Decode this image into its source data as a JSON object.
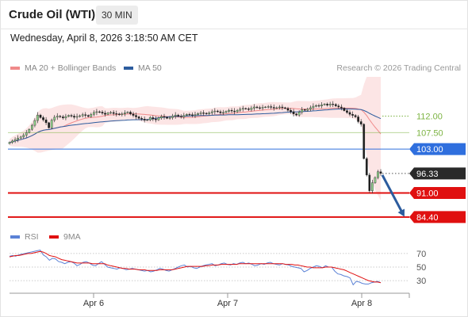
{
  "header": {
    "instrument": "Crude Oil (WTI)",
    "timeframe": "30 MIN",
    "datetime": "Wednesday, April 8, 2026 3:18:50 AM CET"
  },
  "legend": {
    "ma20_label": "MA 20 + Bollinger Bands",
    "ma20_color": "#f08a8a",
    "ma50_label": "MA 50",
    "ma50_color": "#2c5c9e",
    "credit": "Research © 2026 Trading Central"
  },
  "rsi_legend": {
    "rsi_label": "RSI",
    "rsi_color": "#5b82d6",
    "ma9_label": "9MA",
    "ma9_color": "#e01010"
  },
  "chart_data": [
    {
      "type": "candlestick",
      "title": "Crude Oil (WTI)",
      "x_ticks": [
        "Apr 6",
        "Apr 7",
        "Apr 8"
      ],
      "ylim": [
        82,
        121
      ],
      "price_close": [
        104.8,
        105.2,
        105.6,
        106.0,
        106.3,
        106.8,
        107.5,
        108.4,
        109.5,
        110.8,
        112.3,
        111.6,
        111.0,
        110.2,
        108.8,
        110.9,
        111.7,
        112.0,
        111.8,
        111.5,
        111.9,
        112.2,
        112.0,
        111.7,
        111.9,
        112.1,
        112.4,
        112.2,
        111.9,
        112.5,
        113.0,
        113.2,
        113.1,
        112.8,
        112.5,
        112.9,
        113.0,
        112.7,
        112.6,
        112.4,
        112.6,
        112.9,
        113.1,
        112.6,
        112.2,
        111.8,
        111.4,
        111.2,
        110.9,
        111.0,
        111.6,
        111.2,
        111.0,
        111.5,
        111.9,
        111.7,
        111.4,
        111.6,
        112.0,
        112.3,
        112.0,
        111.8,
        112.2,
        112.5,
        112.4,
        112.2,
        112.4,
        112.7,
        112.9,
        112.8,
        112.6,
        112.9,
        113.2,
        113.4,
        113.2,
        112.9,
        113.0,
        113.3,
        113.6,
        113.4,
        113.2,
        113.6,
        113.9,
        114.1,
        114.0,
        113.8,
        114.2,
        114.5,
        114.3,
        114.2,
        114.4,
        114.5,
        114.6,
        114.4,
        114.2,
        114.3,
        114.5,
        114.3,
        114.1,
        113.6,
        113.2,
        112.6,
        112.3,
        113.1,
        113.8,
        113.6,
        113.9,
        114.3,
        114.7,
        114.9,
        114.8,
        115.1,
        115.3,
        115.0,
        115.3,
        115.2,
        114.8,
        114.5,
        114.2,
        113.5,
        113.0,
        112.5,
        112.2,
        111.8,
        110.5,
        109.8,
        100.4,
        95.9,
        91.6,
        93.8,
        95.2,
        96.8,
        96.33
      ],
      "bollinger_upper_range": [
        105,
        126
      ],
      "ma20_range": [
        96,
        115
      ],
      "ma50_range": [
        104,
        114
      ],
      "levels": [
        {
          "value": 112.0,
          "label": "112.00",
          "style": "dotted-green",
          "color": "#7cb342"
        },
        {
          "value": 107.5,
          "label": "107.50",
          "style": "solid-green",
          "color": "#7cb342"
        },
        {
          "value": 103.0,
          "label": "103.00",
          "style": "blue",
          "color": "#2f6fde"
        },
        {
          "value": 96.33,
          "label": "96.33",
          "style": "last-price",
          "color": "#2a2a2a"
        },
        {
          "value": 91.0,
          "label": "91.00",
          "style": "red",
          "color": "#e01010"
        },
        {
          "value": 84.4,
          "label": "84.40",
          "style": "red",
          "color": "#e01010"
        }
      ],
      "forecast_arrow": {
        "from": 96.33,
        "to": 84.4,
        "color": "#2c5c9e"
      }
    },
    {
      "type": "line",
      "title": "RSI",
      "ylim": [
        15,
        78
      ],
      "ticks": [
        70,
        50,
        30
      ],
      "series": [
        {
          "name": "RSI",
          "color": "#5b82d6",
          "values": [
            66,
            67,
            66,
            68,
            69,
            70,
            71,
            72,
            73,
            74,
            75,
            68,
            65,
            60,
            63,
            62,
            58,
            57,
            55,
            57,
            58,
            56,
            52,
            54,
            57,
            58,
            56,
            53,
            52,
            55,
            58,
            54,
            50,
            49,
            48,
            47,
            49,
            48,
            46,
            47,
            48,
            47,
            46,
            45,
            44,
            45,
            43,
            44,
            46,
            48,
            47,
            45,
            44,
            46,
            48,
            50,
            52,
            53,
            50,
            51,
            49,
            48,
            50,
            52,
            53,
            54,
            55,
            52,
            53,
            55,
            56,
            54,
            53,
            55,
            54,
            56,
            57,
            55,
            56,
            54,
            52,
            53,
            55,
            54,
            56,
            57,
            55,
            54,
            53,
            55,
            54,
            53,
            51,
            50,
            49,
            48,
            43,
            45,
            48,
            50,
            52,
            51,
            49,
            52,
            50,
            50,
            44,
            40,
            39,
            37,
            36,
            34,
            24,
            29,
            28,
            26,
            25,
            25,
            27,
            28,
            29,
            27
          ]
        },
        {
          "name": "9MA",
          "color": "#e01010",
          "values": [
            65,
            66,
            67,
            67,
            68,
            69,
            70,
            70,
            71,
            72,
            73,
            72,
            70,
            67,
            66,
            65,
            63,
            61,
            60,
            59,
            58,
            57,
            56,
            56,
            56,
            56,
            56,
            55,
            55,
            55,
            55,
            55,
            53,
            52,
            51,
            50,
            49,
            48,
            48,
            47,
            47,
            47,
            46,
            46,
            46,
            45,
            45,
            45,
            45,
            46,
            46,
            46,
            46,
            46,
            47,
            48,
            49,
            50,
            51,
            51,
            51,
            51,
            51,
            51,
            52,
            52,
            53,
            53,
            53,
            54,
            54,
            54,
            54,
            54,
            54,
            55,
            55,
            55,
            55,
            55,
            55,
            55,
            55,
            55,
            55,
            55,
            55,
            55,
            55,
            55,
            54,
            54,
            54,
            53,
            53,
            52,
            51,
            50,
            50,
            49,
            49,
            49,
            49,
            50,
            50,
            50,
            49,
            48,
            47,
            46,
            44,
            42,
            40,
            38,
            36,
            34,
            32,
            30,
            29,
            28,
            28,
            27
          ]
        }
      ]
    }
  ]
}
